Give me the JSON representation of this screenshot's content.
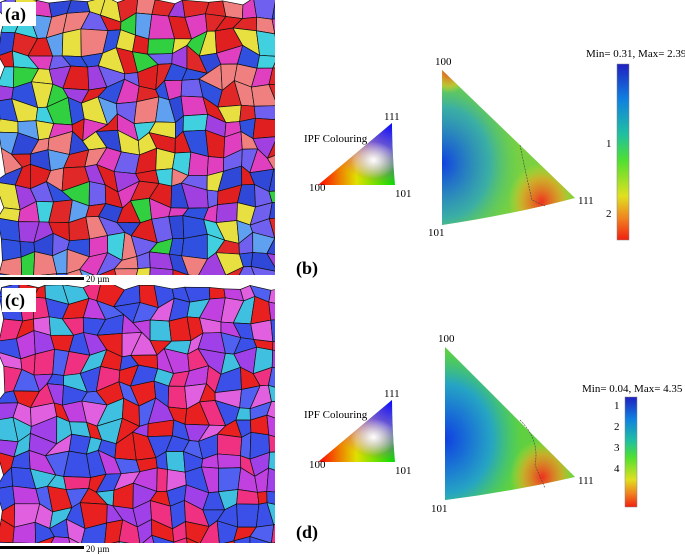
{
  "panels": [
    {
      "label": "(a)",
      "scale_bar": "20 µm"
    },
    {
      "label": "(b)",
      "legend_title": "IPF Colouring",
      "key_labels": [
        "111",
        "100",
        "101"
      ],
      "pole_labels": [
        "100",
        "111",
        "101"
      ],
      "range": "Min= 0.31, Max= 2.39",
      "colorbar_ticks": [
        "1",
        "2"
      ]
    },
    {
      "label": "(c)",
      "scale_bar": "20 µm"
    },
    {
      "label": "(d)",
      "legend_title": "IPF Colouring",
      "key_labels": [
        "111",
        "100",
        "101"
      ],
      "pole_labels": [
        "100",
        "111",
        "101"
      ],
      "range": "Min= 0.04, Max= 4.35",
      "colorbar_ticks": [
        "1",
        "2",
        "3",
        "4"
      ]
    }
  ]
}
